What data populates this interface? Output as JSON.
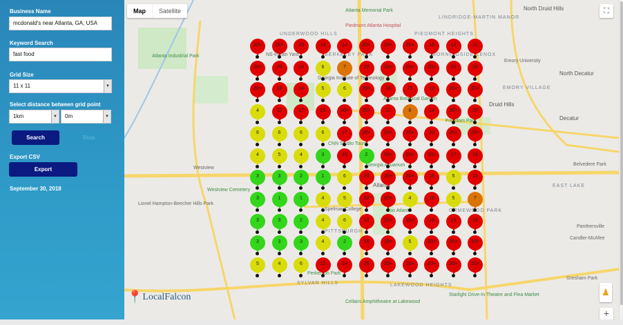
{
  "sidebar": {
    "business_label": "Business Name",
    "business_value": "mcdonald's near Atlanta, GA, USA",
    "keyword_label": "Keyword Search",
    "keyword_value": "fast food",
    "grid_label": "Grid Size",
    "grid_value": "11 x 11",
    "distance_label": "Select distance between grid point",
    "distance_km": "1km",
    "distance_m": "0m",
    "search_label": "Search",
    "stop_label": "Stop",
    "export_label": "Export CSV",
    "export_button": "Export",
    "date": "September 30, 2018"
  },
  "map": {
    "type_map": "Map",
    "type_satellite": "Satellite",
    "logo": "LocalFalcon",
    "zoom_in": "+",
    "labels": [
      "Atlanta Memorial Park",
      "Piedmont Atlanta Hospital",
      "UNDERWOOD HILLS",
      "BERKELEY PARK",
      "NS-Inman Yard",
      "Atlanta Industrial Park",
      "LINDRIDGE-MARTIN MANOR",
      "PIEDMONT HEIGHTS",
      "MORNINGSIDE-LENOX",
      "Emory University",
      "North Druid Hills",
      "EMORY VILLAGE",
      "North Decatur",
      "Druid Hills",
      "Decatur",
      "Freedom Park",
      "Westview Cemetery",
      "Spelman College",
      "Zoo Atlanta",
      "ORMEWOOD PARK",
      "Atlanta",
      "Lionel Hampton-Beecher Hills Park",
      "SYLVAN HILLS",
      "LAKEWOOD HEIGHTS",
      "Cellairs Amphitheatre at Lakewood",
      "Starlight Drive-In Theatre and Flea Market",
      "Gresham Park",
      "EAST LAKE",
      "Candler-McAfee",
      "Belvedere Park",
      "Panthersville",
      "Atlanta Botanical Garden",
      "Georgia Institute of Technology",
      "Georgia Aquarium",
      "CNN Studio Tours",
      "PITTSBURGH",
      "Westview",
      "Perkerson Park"
    ]
  },
  "colors": {
    "green": "#33d61a",
    "yellow": "#d9dc0a",
    "orange": "#dc7306",
    "red": "#e00000"
  },
  "grid_ranks": [
    [
      "20+",
      "20+",
      "20",
      "13",
      "14",
      "20+",
      "20+",
      "20+",
      "16",
      "14",
      "11"
    ],
    [
      "20+",
      "20",
      "14",
      "6",
      "7",
      "20",
      "20+",
      "20+",
      "20+",
      "20",
      "20"
    ],
    [
      "20+",
      "18",
      "14",
      "5",
      "6",
      "20+",
      "18",
      "15",
      "12",
      "20+",
      "20+"
    ],
    [
      "4",
      "15",
      "17",
      "16",
      "20+",
      "20+",
      "17",
      "8",
      "12",
      "20+",
      "20"
    ],
    [
      "6",
      "6",
      "6",
      "6",
      "17",
      "20+",
      "20+",
      "20+",
      "20",
      "20+",
      "20+"
    ],
    [
      "4",
      "5",
      "4",
      "3",
      "15",
      "2",
      "20+",
      "20+",
      "20+",
      "17",
      "19"
    ],
    [
      "3",
      "3",
      "2",
      "1",
      "6",
      "20",
      "20+",
      "20+",
      "15",
      "5",
      "11"
    ],
    [
      "3",
      "1",
      "1",
      "4",
      "5",
      "19",
      "20+",
      "4",
      "16",
      "5",
      "7"
    ],
    [
      "3",
      "3",
      "2",
      "4",
      "6",
      "12",
      "20+",
      "20+",
      "16",
      "15",
      "15"
    ],
    [
      "3",
      "3",
      "3",
      "4",
      "2",
      "16",
      "20+",
      "5",
      "20+",
      "20+",
      "20+"
    ],
    [
      "5",
      "4",
      "6",
      "12",
      "14",
      "16",
      "20+",
      "20+",
      "20+",
      "20+",
      "20+"
    ]
  ]
}
